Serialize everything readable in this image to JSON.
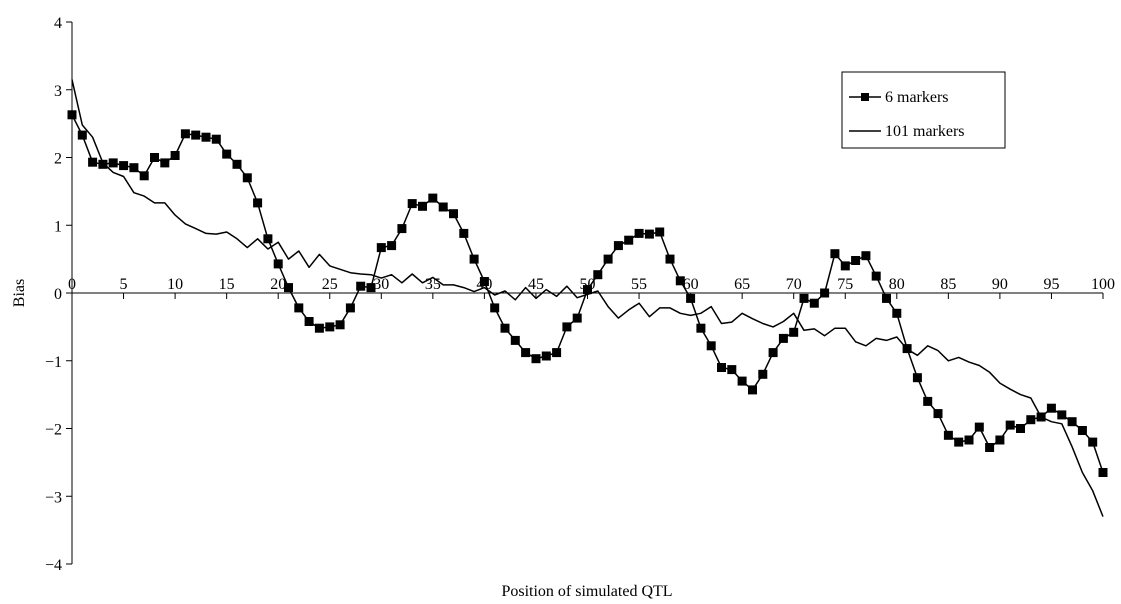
{
  "chart_data": {
    "type": "line",
    "title": "",
    "xlabel": "Position of simulated QTL",
    "ylabel": "Bias",
    "xlim": [
      0,
      100
    ],
    "ylim": [
      -4,
      4
    ],
    "xticks": [
      0,
      5,
      10,
      15,
      20,
      25,
      30,
      35,
      40,
      45,
      50,
      55,
      60,
      65,
      70,
      75,
      80,
      85,
      90,
      95,
      100
    ],
    "yticks": [
      -4,
      -3,
      -2,
      -1,
      0,
      1,
      2,
      3,
      4
    ],
    "ytick_labels": [
      "−4",
      "−3",
      "−2",
      "−1",
      "0",
      "1",
      "2",
      "3",
      "4"
    ],
    "grid": false,
    "legend_position": "top-right",
    "series": [
      {
        "name": "6 markers",
        "marker": "square",
        "color": "#000000",
        "x": [
          0,
          1,
          2,
          3,
          4,
          5,
          6,
          7,
          8,
          9,
          10,
          11,
          12,
          13,
          14,
          15,
          16,
          17,
          18,
          19,
          20,
          21,
          22,
          23,
          24,
          25,
          26,
          27,
          28,
          29,
          30,
          31,
          32,
          33,
          34,
          35,
          36,
          37,
          38,
          39,
          40,
          41,
          42,
          43,
          44,
          45,
          46,
          47,
          48,
          49,
          50,
          51,
          52,
          53,
          54,
          55,
          56,
          57,
          58,
          59,
          60,
          61,
          62,
          63,
          64,
          65,
          66,
          67,
          68,
          69,
          70,
          71,
          72,
          73,
          74,
          75,
          76,
          77,
          78,
          79,
          80,
          81,
          82,
          83,
          84,
          85,
          86,
          87,
          88,
          89,
          90,
          91,
          92,
          93,
          94,
          95,
          96,
          97,
          98,
          99,
          100
        ],
        "y": [
          2.63,
          2.33,
          1.93,
          1.9,
          1.92,
          1.88,
          1.85,
          1.73,
          2.0,
          1.92,
          2.03,
          2.35,
          2.33,
          2.3,
          2.27,
          2.05,
          1.9,
          1.7,
          1.33,
          0.8,
          0.43,
          0.08,
          -0.22,
          -0.42,
          -0.52,
          -0.5,
          -0.47,
          -0.22,
          0.1,
          0.08,
          0.67,
          0.7,
          0.95,
          1.32,
          1.28,
          1.4,
          1.27,
          1.17,
          0.88,
          0.5,
          0.17,
          -0.22,
          -0.52,
          -0.7,
          -0.88,
          -0.97,
          -0.93,
          -0.88,
          -0.5,
          -0.37,
          0.05,
          0.27,
          0.5,
          0.7,
          0.78,
          0.88,
          0.87,
          0.9,
          0.5,
          0.18,
          -0.08,
          -0.52,
          -0.78,
          -1.1,
          -1.13,
          -1.3,
          -1.43,
          -1.2,
          -0.88,
          -0.67,
          -0.58,
          -0.08,
          -0.15,
          0.0,
          0.58,
          0.4,
          0.48,
          0.55,
          0.25,
          -0.08,
          -0.3,
          -0.82,
          -1.25,
          -1.6,
          -1.78,
          -2.1,
          -2.2,
          -2.17,
          -1.98,
          -2.28,
          -2.17,
          -1.95,
          -2.0,
          -1.87,
          -1.83,
          -1.7,
          -1.8,
          -1.9,
          -2.03,
          -2.2,
          -2.65
        ]
      },
      {
        "name": "101 markers",
        "marker": "none",
        "color": "#000000",
        "x": [
          0,
          1,
          2,
          3,
          4,
          5,
          6,
          7,
          8,
          9,
          10,
          11,
          12,
          13,
          14,
          15,
          16,
          17,
          18,
          19,
          20,
          21,
          22,
          23,
          24,
          25,
          26,
          27,
          28,
          29,
          30,
          31,
          32,
          33,
          34,
          35,
          36,
          37,
          38,
          39,
          40,
          41,
          42,
          43,
          44,
          45,
          46,
          47,
          48,
          49,
          50,
          51,
          52,
          53,
          54,
          55,
          56,
          57,
          58,
          59,
          60,
          61,
          62,
          63,
          64,
          65,
          66,
          67,
          68,
          69,
          70,
          71,
          72,
          73,
          74,
          75,
          76,
          77,
          78,
          79,
          80,
          81,
          82,
          83,
          84,
          85,
          86,
          87,
          88,
          89,
          90,
          91,
          92,
          93,
          94,
          95,
          96,
          97,
          98,
          99,
          100
        ],
        "y": [
          3.15,
          2.48,
          2.3,
          1.92,
          1.78,
          1.72,
          1.48,
          1.43,
          1.33,
          1.33,
          1.15,
          1.02,
          0.95,
          0.88,
          0.87,
          0.9,
          0.8,
          0.67,
          0.8,
          0.65,
          0.75,
          0.5,
          0.62,
          0.38,
          0.57,
          0.4,
          0.35,
          0.3,
          0.28,
          0.27,
          0.22,
          0.27,
          0.15,
          0.28,
          0.15,
          0.23,
          0.12,
          0.12,
          0.08,
          0.02,
          0.08,
          -0.03,
          0.03,
          -0.1,
          0.08,
          -0.08,
          0.05,
          -0.05,
          0.1,
          -0.07,
          -0.02,
          0.03,
          -0.2,
          -0.37,
          -0.25,
          -0.15,
          -0.35,
          -0.22,
          -0.22,
          -0.3,
          -0.33,
          -0.3,
          -0.2,
          -0.45,
          -0.43,
          -0.3,
          -0.38,
          -0.45,
          -0.5,
          -0.42,
          -0.3,
          -0.55,
          -0.53,
          -0.63,
          -0.52,
          -0.52,
          -0.72,
          -0.78,
          -0.67,
          -0.7,
          -0.65,
          -0.83,
          -0.92,
          -0.78,
          -0.85,
          -1.0,
          -0.95,
          -1.02,
          -1.07,
          -1.17,
          -1.33,
          -1.42,
          -1.5,
          -1.55,
          -1.83,
          -1.9,
          -1.93,
          -2.27,
          -2.65,
          -2.92,
          -3.3
        ]
      }
    ],
    "annotations": {
      "lower_x_labels": [
        "55",
        "60",
        "65",
        "70",
        "80"
      ],
      "lower_x_values": [
        55,
        60,
        65,
        70,
        80
      ]
    }
  }
}
